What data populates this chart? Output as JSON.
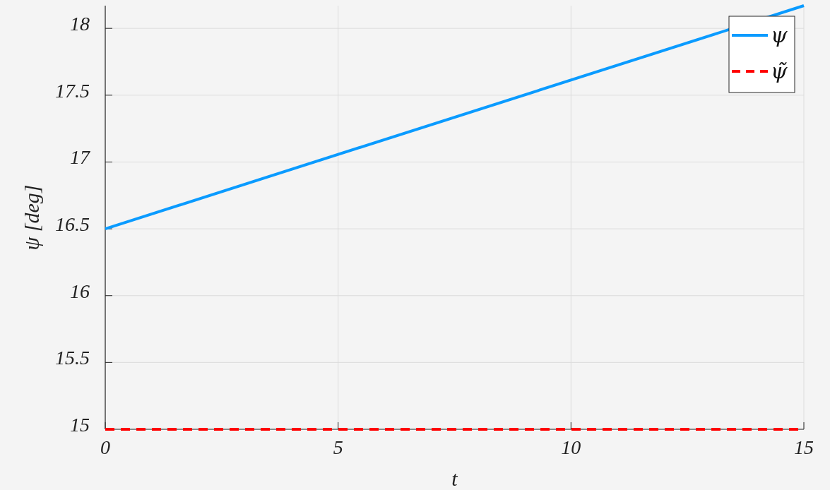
{
  "chart_data": {
    "type": "line",
    "xlabel": "t",
    "ylabel": "ψ [deg]",
    "x": [
      0,
      15
    ],
    "series": [
      {
        "name": "ψ",
        "color": "#0a9bff",
        "values": [
          16.5,
          18.17
        ],
        "line_style": "solid"
      },
      {
        "name": "ψ̃",
        "color": "#ff0000",
        "values": [
          15,
          15
        ],
        "line_style": "dashed"
      }
    ],
    "xlim": [
      0,
      15
    ],
    "ylim": [
      15,
      18.17
    ],
    "xticks": [
      0,
      5,
      10,
      15
    ],
    "yticks": [
      15,
      15.5,
      16,
      16.5,
      17,
      17.5,
      18
    ],
    "grid": true,
    "legend": "top right"
  }
}
